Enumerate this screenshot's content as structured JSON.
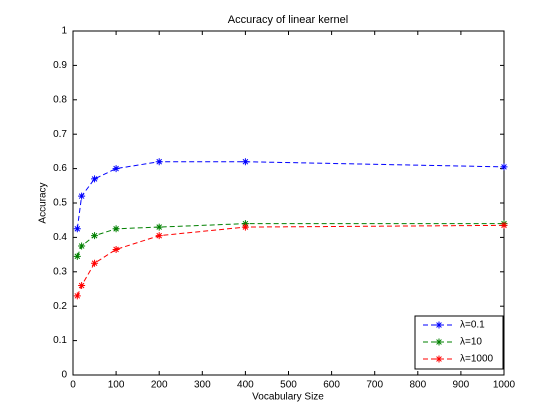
{
  "chart_data": {
    "type": "line",
    "title": "Accuracy of linear kernel",
    "x_label": "Vocabulary Size",
    "y_label": "Accuracy",
    "x": [
      10,
      20,
      50,
      100,
      200,
      400,
      1000
    ],
    "series": [
      {
        "name": "λ=0.1",
        "color": "#0000ff",
        "values": [
          0.425,
          0.52,
          0.57,
          0.6,
          0.62,
          0.62,
          0.605
        ]
      },
      {
        "name": "λ=10",
        "color": "#008000",
        "values": [
          0.345,
          0.375,
          0.405,
          0.425,
          0.43,
          0.44,
          0.44
        ]
      },
      {
        "name": "λ=1000",
        "color": "#ff0000",
        "values": [
          0.23,
          0.26,
          0.325,
          0.365,
          0.405,
          0.43,
          0.435
        ]
      }
    ],
    "xlim": [
      0,
      1000
    ],
    "xticks": [
      0,
      100,
      200,
      300,
      400,
      500,
      600,
      700,
      800,
      900,
      1000
    ],
    "ylim": [
      0,
      1
    ],
    "yticks": [
      0,
      0.1,
      0.2,
      0.3,
      0.4,
      0.5,
      0.6,
      0.7,
      0.8,
      0.9,
      1
    ],
    "grid": false,
    "legend": "southeast"
  }
}
